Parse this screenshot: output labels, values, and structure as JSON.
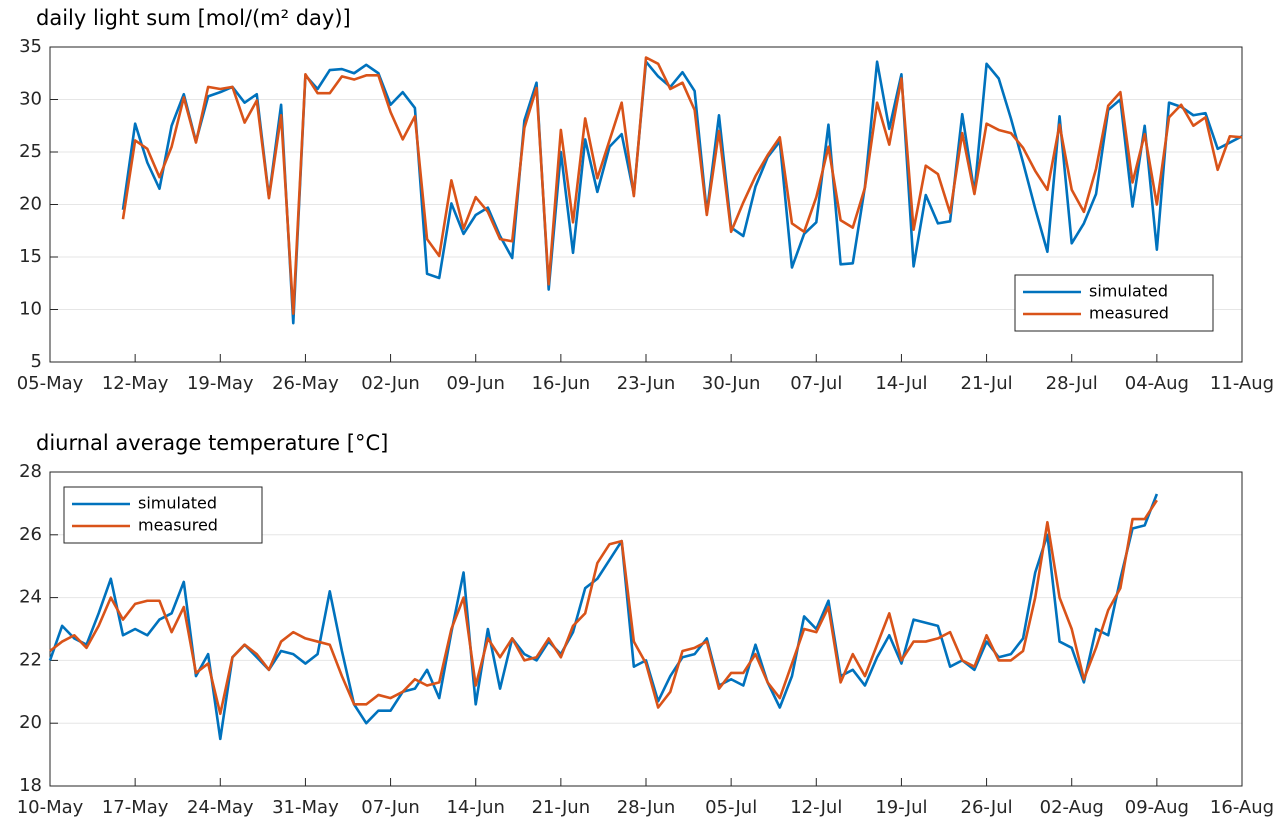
{
  "chart_data": [
    {
      "type": "line",
      "title": "daily light sum [mol/(m² day)]",
      "x": [
        "11-May",
        "12-May",
        "13-May",
        "14-May",
        "15-May",
        "16-May",
        "17-May",
        "18-May",
        "19-May",
        "20-May",
        "21-May",
        "22-May",
        "23-May",
        "24-May",
        "25-May",
        "26-May",
        "27-May",
        "28-May",
        "29-May",
        "30-May",
        "31-May",
        "01-Jun",
        "02-Jun",
        "03-Jun",
        "04-Jun",
        "05-Jun",
        "06-Jun",
        "07-Jun",
        "08-Jun",
        "09-Jun",
        "10-Jun",
        "11-Jun",
        "12-Jun",
        "13-Jun",
        "14-Jun",
        "15-Jun",
        "16-Jun",
        "17-Jun",
        "18-Jun",
        "19-Jun",
        "20-Jun",
        "21-Jun",
        "22-Jun",
        "23-Jun",
        "24-Jun",
        "25-Jun",
        "26-Jun",
        "27-Jun",
        "28-Jun",
        "29-Jun",
        "30-Jun",
        "01-Jul",
        "02-Jul",
        "03-Jul",
        "04-Jul",
        "05-Jul",
        "06-Jul",
        "07-Jul",
        "08-Jul",
        "09-Jul",
        "10-Jul",
        "11-Jul",
        "12-Jul",
        "13-Jul",
        "14-Jul",
        "15-Jul",
        "16-Jul",
        "17-Jul",
        "18-Jul",
        "19-Jul",
        "20-Jul",
        "21-Jul",
        "22-Jul",
        "23-Jul",
        "24-Jul",
        "25-Jul",
        "26-Jul",
        "27-Jul",
        "28-Jul",
        "29-Jul",
        "30-Jul",
        "31-Jul",
        "01-Aug",
        "02-Aug",
        "03-Aug",
        "04-Aug",
        "05-Aug",
        "06-Aug",
        "07-Aug",
        "08-Aug",
        "09-Aug",
        "10-Aug",
        "11-Aug"
      ],
      "xlim": [
        "05-May",
        "11-Aug"
      ],
      "xticks": [
        "05-May",
        "12-May",
        "19-May",
        "26-May",
        "02-Jun",
        "09-Jun",
        "16-Jun",
        "23-Jun",
        "30-Jun",
        "07-Jul",
        "14-Jul",
        "21-Jul",
        "28-Jul",
        "04-Aug",
        "11-Aug"
      ],
      "ylim": [
        5,
        35
      ],
      "yticks": [
        5,
        10,
        15,
        20,
        25,
        30,
        35
      ],
      "grid": "y",
      "legend": "southeast",
      "series": [
        {
          "name": "simulated",
          "color": "#0072bd",
          "values": [
            19.5,
            27.7,
            24,
            21.5,
            27.5,
            30.5,
            26,
            30.3,
            30.7,
            31.2,
            29.7,
            30.5,
            20.7,
            29.5,
            8.7,
            32.3,
            31,
            32.8,
            32.9,
            32.5,
            33.3,
            32.5,
            29.5,
            30.7,
            29.2,
            13.4,
            13,
            20.1,
            17.2,
            19,
            19.7,
            17,
            14.9,
            28,
            31.6,
            11.9,
            25,
            15.4,
            26.2,
            21.2,
            25.5,
            26.7,
            21,
            33.6,
            32.2,
            31.2,
            32.6,
            30.8,
            19.2,
            28.5,
            17.8,
            17,
            21.7,
            24.5,
            26,
            14,
            17.2,
            18.3,
            27.6,
            14.3,
            14.4,
            21.7,
            33.6,
            27.2,
            32.4,
            14.1,
            20.9,
            18.2,
            18.4,
            28.6,
            21.1,
            33.4,
            32,
            28.2,
            24,
            19.6,
            15.5,
            28.4,
            16.3,
            18.2,
            21,
            29,
            30,
            19.8,
            27.5,
            15.7,
            29.7,
            29.3,
            28.5,
            28.7,
            25.3,
            25.9,
            26.5
          ]
        },
        {
          "name": "measured",
          "color": "#d95319",
          "values": [
            18.6,
            26.1,
            25.3,
            22.6,
            25.5,
            30.2,
            25.9,
            31.2,
            31,
            31.2,
            27.8,
            29.9,
            20.6,
            28.5,
            9.6,
            32.4,
            30.6,
            30.6,
            32.2,
            31.9,
            32.3,
            32.3,
            28.8,
            26.2,
            28.4,
            16.7,
            15.1,
            22.3,
            17.7,
            20.7,
            19.3,
            16.7,
            16.5,
            27.3,
            31.1,
            12.4,
            27.1,
            18.3,
            28.2,
            22.5,
            26.1,
            29.7,
            20.8,
            34,
            33.4,
            31,
            31.6,
            29,
            19,
            27,
            17.4,
            20.2,
            22.7,
            24.7,
            26.4,
            18.2,
            17.4,
            20.7,
            25.5,
            18.5,
            17.8,
            21.6,
            29.7,
            25.7,
            32,
            17.6,
            23.7,
            22.9,
            19.2,
            26.8,
            21,
            27.7,
            27.1,
            26.8,
            25.4,
            23.2,
            21.4,
            27.6,
            21.4,
            19.3,
            23.4,
            29.4,
            30.7,
            22.1,
            26.7,
            20,
            28.3,
            29.5,
            27.5,
            28.3,
            23.3,
            26.5,
            26.4
          ]
        }
      ]
    },
    {
      "type": "line",
      "title": "diurnal average temperature [°C]",
      "x": [
        "10-May",
        "11-May",
        "12-May",
        "13-May",
        "14-May",
        "15-May",
        "16-May",
        "17-May",
        "18-May",
        "19-May",
        "20-May",
        "21-May",
        "22-May",
        "23-May",
        "24-May",
        "25-May",
        "26-May",
        "27-May",
        "28-May",
        "29-May",
        "30-May",
        "31-May",
        "01-Jun",
        "02-Jun",
        "03-Jun",
        "04-Jun",
        "05-Jun",
        "06-Jun",
        "07-Jun",
        "08-Jun",
        "09-Jun",
        "10-Jun",
        "11-Jun",
        "12-Jun",
        "13-Jun",
        "14-Jun",
        "15-Jun",
        "16-Jun",
        "17-Jun",
        "18-Jun",
        "19-Jun",
        "20-Jun",
        "21-Jun",
        "22-Jun",
        "23-Jun",
        "24-Jun",
        "25-Jun",
        "26-Jun",
        "27-Jun",
        "28-Jun",
        "29-Jun",
        "30-Jun",
        "01-Jul",
        "02-Jul",
        "03-Jul",
        "04-Jul",
        "05-Jul",
        "06-Jul",
        "07-Jul",
        "08-Jul",
        "09-Jul",
        "10-Jul",
        "11-Jul",
        "12-Jul",
        "13-Jul",
        "14-Jul",
        "15-Jul",
        "16-Jul",
        "17-Jul",
        "18-Jul",
        "19-Jul",
        "20-Jul",
        "21-Jul",
        "22-Jul",
        "23-Jul",
        "24-Jul",
        "25-Jul",
        "26-Jul",
        "27-Jul",
        "28-Jul",
        "29-Jul",
        "30-Jul",
        "31-Jul",
        "01-Aug",
        "02-Aug",
        "03-Aug",
        "04-Aug",
        "05-Aug",
        "06-Aug",
        "07-Aug",
        "08-Aug",
        "09-Aug"
      ],
      "xlim": [
        "10-May",
        "16-Aug"
      ],
      "xticks": [
        "10-May",
        "17-May",
        "24-May",
        "31-May",
        "07-Jun",
        "14-Jun",
        "21-Jun",
        "28-Jun",
        "05-Jul",
        "12-Jul",
        "19-Jul",
        "26-Jul",
        "02-Aug",
        "09-Aug",
        "16-Aug"
      ],
      "ylim": [
        18,
        28
      ],
      "yticks": [
        18,
        20,
        22,
        24,
        26,
        28
      ],
      "grid": "y",
      "legend": "northwest",
      "series": [
        {
          "name": "simulated",
          "color": "#0072bd",
          "values": [
            22,
            23.1,
            22.7,
            22.5,
            23.5,
            24.6,
            22.8,
            23,
            22.8,
            23.3,
            23.5,
            24.5,
            21.5,
            22.2,
            19.5,
            22.1,
            22.5,
            22.1,
            21.7,
            22.3,
            22.2,
            21.9,
            22.2,
            24.2,
            22.3,
            20.6,
            20,
            20.4,
            20.4,
            21,
            21.1,
            21.7,
            20.8,
            22.9,
            24.8,
            20.6,
            23,
            21.1,
            22.7,
            22.2,
            22,
            22.6,
            22.2,
            22.9,
            24.3,
            24.6,
            25.2,
            25.8,
            21.8,
            22,
            20.7,
            21.5,
            22.1,
            22.2,
            22.7,
            21.2,
            21.4,
            21.2,
            22.5,
            21.3,
            20.5,
            21.5,
            23.4,
            23,
            23.9,
            21.5,
            21.7,
            21.2,
            22.1,
            22.8,
            21.9,
            23.3,
            23.2,
            23.1,
            21.8,
            22,
            21.7,
            22.6,
            22.1,
            22.2,
            22.7,
            24.8,
            26,
            22.6,
            22.4,
            21.3,
            23,
            22.8,
            24.6,
            26.2,
            26.3,
            27.3
          ]
        },
        {
          "name": "measured",
          "color": "#d95319",
          "values": [
            22.3,
            22.6,
            22.8,
            22.4,
            23.1,
            24,
            23.3,
            23.8,
            23.9,
            23.9,
            22.9,
            23.7,
            21.6,
            21.9,
            20.3,
            22.1,
            22.5,
            22.2,
            21.7,
            22.6,
            22.9,
            22.7,
            22.6,
            22.5,
            21.5,
            20.6,
            20.6,
            20.9,
            20.8,
            21,
            21.4,
            21.2,
            21.3,
            23,
            24,
            21.2,
            22.7,
            22.1,
            22.7,
            22,
            22.1,
            22.7,
            22.1,
            23.1,
            23.5,
            25.1,
            25.7,
            25.8,
            22.6,
            21.9,
            20.5,
            21,
            22.3,
            22.4,
            22.6,
            21.1,
            21.6,
            21.6,
            22.2,
            21.3,
            20.8,
            21.9,
            23,
            22.9,
            23.7,
            21.3,
            22.2,
            21.5,
            22.5,
            23.5,
            22,
            22.6,
            22.6,
            22.7,
            22.9,
            22,
            21.8,
            22.8,
            22,
            22,
            22.3,
            24,
            26.4,
            24,
            23,
            21.4,
            22.4,
            23.6,
            24.3,
            26.5,
            26.5,
            27.1
          ]
        }
      ]
    }
  ]
}
